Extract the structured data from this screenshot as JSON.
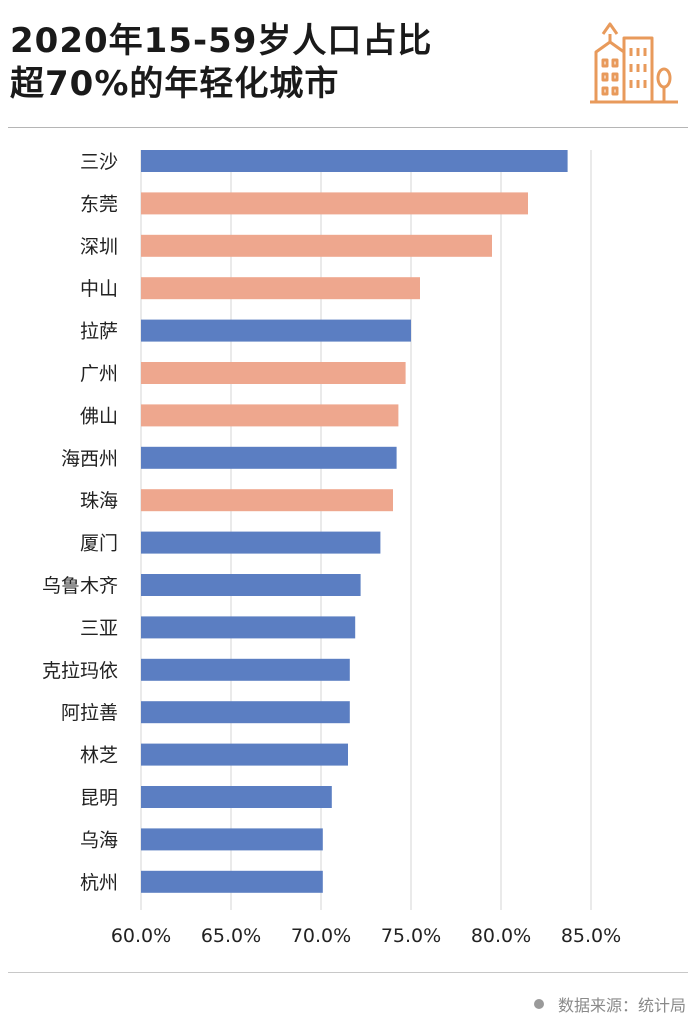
{
  "header": {
    "title_line1": "2020年15-59岁人口占比",
    "title_line2": "超70%的年轻化城市"
  },
  "icons": {
    "logo": "city-buildings-icon"
  },
  "colors": {
    "blue": "#5b7ec2",
    "salmon": "#eea78e",
    "logo": "#e89a5b",
    "grid": "#d6d6d6"
  },
  "footer": {
    "source": "数据来源：统计局"
  },
  "chart_data": {
    "type": "bar",
    "orientation": "horizontal",
    "categories": [
      "三沙",
      "东莞",
      "深圳",
      "中山",
      "拉萨",
      "广州",
      "佛山",
      "海西州",
      "珠海",
      "厦门",
      "乌鲁木齐",
      "三亚",
      "克拉玛依",
      "阿拉善",
      "林芝",
      "昆明",
      "乌海",
      "杭州"
    ],
    "values": [
      83.7,
      81.5,
      79.5,
      75.5,
      75.0,
      74.7,
      74.3,
      74.2,
      74.0,
      73.3,
      72.2,
      71.9,
      71.6,
      71.6,
      71.5,
      70.6,
      70.1,
      70.1
    ],
    "highlight": [
      false,
      true,
      true,
      true,
      false,
      true,
      true,
      false,
      true,
      false,
      false,
      false,
      false,
      false,
      false,
      false,
      false,
      false
    ],
    "xlim": [
      60,
      85
    ],
    "xticks": [
      "60.0%",
      "65.0%",
      "70.0%",
      "75.0%",
      "80.0%",
      "85.0%"
    ],
    "grid": "vertical"
  }
}
